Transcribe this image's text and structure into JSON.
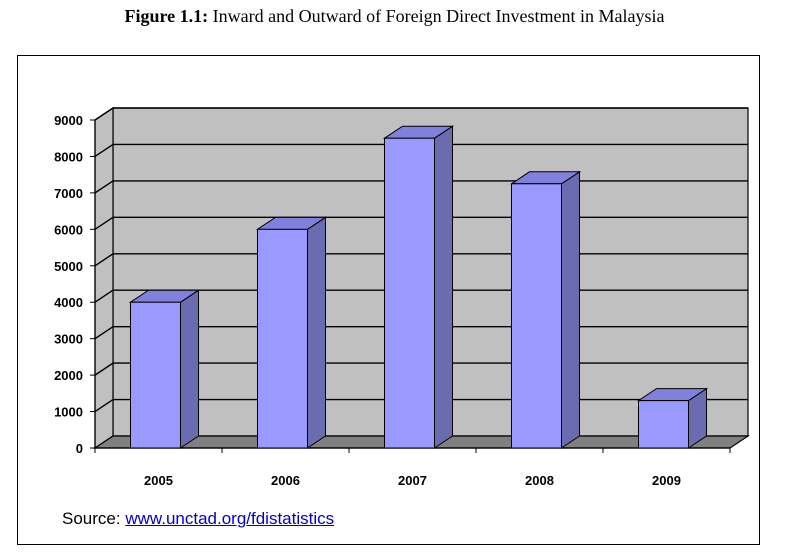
{
  "caption": {
    "label": "Figure 1.1:",
    "text": "Inward and Outward of Foreign Direct Investment in Malaysia"
  },
  "source": {
    "prefix": "Source:",
    "link": "www.unctad.org/fdistatistics"
  },
  "colors": {
    "bar_front": "#9999ff",
    "bar_side": "#6b6bb0",
    "bar_top": "#8080dd",
    "wall": "#c0c0c0",
    "floor": "#808080"
  },
  "chart_data": {
    "type": "bar",
    "categories": [
      "2005",
      "2006",
      "2007",
      "2008",
      "2009"
    ],
    "values": [
      4000,
      6000,
      8500,
      7250,
      1300
    ],
    "ylim": [
      0,
      9000
    ],
    "yticks": [
      0,
      1000,
      2000,
      3000,
      4000,
      5000,
      6000,
      7000,
      8000,
      9000
    ],
    "grid": true,
    "legend": "none",
    "style": "3d"
  }
}
